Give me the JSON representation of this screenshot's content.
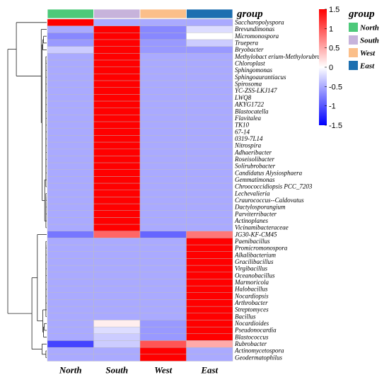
{
  "chart_data": {
    "type": "heatmap",
    "columns": [
      "North",
      "South",
      "West",
      "East"
    ],
    "group_annotation": {
      "title": "group",
      "colors": {
        "North": "#4dc97a",
        "South": "#c7b3db",
        "West": "#fbbf8a",
        "East": "#1d6fb0"
      }
    },
    "rows": [
      "Saccharopolyspora",
      "Brevundimonas",
      "Micromonospora",
      "Truepera",
      "Bryobacter",
      "Methylobact erium-Methylorubrum",
      "Chloroplast",
      "Sphingomonas",
      "Sphingoaurantiacus",
      "Spirosoma",
      "YC-ZSS-LKJ147",
      "LWQ8",
      "AKYG1722",
      "Blastocatella",
      "Flavitalea",
      "TK10",
      "67-14",
      "0319-7L14",
      "Nitrospira",
      "Adhaeribacter",
      "Roseisolibacter",
      "Solirubrobacter",
      "Candidatus Alysiosphaera",
      "Gemmatimonas",
      "Chroococcidiopsis PCC_7203",
      "Lechevalieria",
      "Craurococcus--Caldovatus",
      "Dactylosporangium",
      "Parviterribacter",
      "Actinoplanes",
      "Vicinamibacteraceae",
      "JG30-KF-CM45",
      "Paenibacillus",
      "Promicromonospora",
      "Alkalibacterium",
      "Gracilibacillus",
      "Virgibacillus",
      "Oceanobacillus",
      "Marmoricola",
      "Halobacillus",
      "Nocardiopsis",
      "Arthrobacter",
      "Streptomyces",
      "Bacillus",
      "Nocardioides",
      "Pseudonocardia",
      "Blastococcus",
      "Rubrobacter",
      "Actinomycetospora",
      "Geodermatophilus"
    ],
    "values": [
      [
        1.5,
        -0.5,
        -0.5,
        -0.5
      ],
      [
        -0.5,
        1.5,
        -0.7,
        -0.2
      ],
      [
        -0.7,
        1.5,
        -0.7,
        0.0
      ],
      [
        -0.6,
        1.5,
        -0.6,
        -0.3
      ],
      [
        -0.3,
        1.5,
        -0.6,
        -0.6
      ],
      [
        -0.5,
        1.5,
        -0.5,
        -0.5
      ],
      [
        -0.5,
        1.5,
        -0.5,
        -0.5
      ],
      [
        -0.5,
        1.5,
        -0.5,
        -0.5
      ],
      [
        -0.5,
        1.5,
        -0.5,
        -0.5
      ],
      [
        -0.5,
        1.5,
        -0.5,
        -0.5
      ],
      [
        -0.5,
        1.5,
        -0.5,
        -0.5
      ],
      [
        -0.5,
        1.5,
        -0.5,
        -0.5
      ],
      [
        -0.5,
        1.5,
        -0.5,
        -0.5
      ],
      [
        -0.5,
        1.5,
        -0.5,
        -0.5
      ],
      [
        -0.5,
        1.5,
        -0.5,
        -0.5
      ],
      [
        -0.5,
        1.5,
        -0.5,
        -0.5
      ],
      [
        -0.5,
        1.5,
        -0.5,
        -0.5
      ],
      [
        -0.5,
        1.5,
        -0.5,
        -0.5
      ],
      [
        -0.5,
        1.5,
        -0.5,
        -0.5
      ],
      [
        -0.5,
        1.5,
        -0.5,
        -0.5
      ],
      [
        -0.5,
        1.5,
        -0.5,
        -0.5
      ],
      [
        -0.5,
        1.5,
        -0.5,
        -0.5
      ],
      [
        -0.5,
        1.5,
        -0.5,
        -0.5
      ],
      [
        -0.5,
        1.5,
        -0.5,
        -0.5
      ],
      [
        -0.5,
        1.5,
        -0.5,
        -0.5
      ],
      [
        -0.5,
        1.5,
        -0.5,
        -0.5
      ],
      [
        -0.5,
        1.5,
        -0.5,
        -0.5
      ],
      [
        -0.5,
        1.5,
        -0.5,
        -0.5
      ],
      [
        -0.5,
        1.5,
        -0.5,
        -0.5
      ],
      [
        -0.5,
        1.5,
        -0.5,
        -0.5
      ],
      [
        -0.5,
        1.5,
        -0.5,
        -0.5
      ],
      [
        -0.8,
        0.9,
        -0.9,
        0.8
      ],
      [
        -0.5,
        -0.5,
        -0.5,
        1.5
      ],
      [
        -0.5,
        -0.5,
        -0.5,
        1.5
      ],
      [
        -0.5,
        -0.5,
        -0.5,
        1.5
      ],
      [
        -0.5,
        -0.5,
        -0.5,
        1.5
      ],
      [
        -0.5,
        -0.5,
        -0.5,
        1.5
      ],
      [
        -0.5,
        -0.5,
        -0.5,
        1.5
      ],
      [
        -0.5,
        -0.5,
        -0.5,
        1.5
      ],
      [
        -0.5,
        -0.5,
        -0.5,
        1.5
      ],
      [
        -0.5,
        -0.5,
        -0.5,
        1.5
      ],
      [
        -0.5,
        -0.5,
        -0.5,
        1.5
      ],
      [
        -0.5,
        -0.5,
        -0.5,
        1.5
      ],
      [
        -0.5,
        -0.5,
        -0.5,
        1.5
      ],
      [
        -0.5,
        0.1,
        -0.6,
        1.5
      ],
      [
        -0.5,
        -0.2,
        -0.6,
        1.5
      ],
      [
        -0.5,
        -0.3,
        -0.6,
        1.5
      ],
      [
        -1.1,
        -0.3,
        1.0,
        0.5
      ],
      [
        -0.5,
        -0.5,
        1.5,
        -0.5
      ],
      [
        -0.5,
        -0.5,
        1.5,
        -0.5
      ]
    ],
    "color_scale": {
      "min": -1.5,
      "max": 1.5,
      "low": "#0000ff",
      "mid": "#ffffff",
      "high": "#ff0000",
      "ticks": [
        1.5,
        1,
        0.5,
        0,
        -0.5,
        -1,
        -1.5
      ]
    },
    "legend": {
      "title": "group",
      "entries": [
        "North",
        "South",
        "West",
        "East"
      ],
      "placement": "right"
    },
    "colorbar_placement": "top-right",
    "dendrogram": {
      "rows": true,
      "columns": false
    },
    "title": "",
    "xlabel": "",
    "ylabel": ""
  }
}
